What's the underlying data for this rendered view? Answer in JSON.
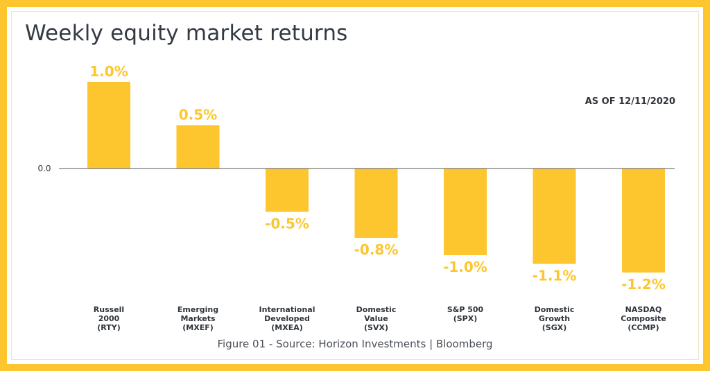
{
  "page": {
    "title": "Weekly equity market returns",
    "as_of": "AS OF 12/11/2020",
    "source": "Figure 01 - Source: Horizon Investments | Bloomberg"
  },
  "colors": {
    "bar": "#FDC62E",
    "text": "#2f343b",
    "baseline": "#555555"
  },
  "chart_data": {
    "type": "bar",
    "title": "Weekly equity market returns",
    "xlabel": "",
    "ylabel": "",
    "grid": false,
    "ylim": [
      -1.2,
      1.0
    ],
    "zero_label": "0.0",
    "categories": [
      [
        "Russell",
        "2000",
        "(RTY)"
      ],
      [
        "Emerging",
        "Markets",
        "(MXEF)"
      ],
      [
        "International",
        "Developed",
        "(MXEA)"
      ],
      [
        "Domestic",
        "Value",
        "(SVX)"
      ],
      [
        "S&P 500",
        "(SPX)"
      ],
      [
        "Domestic",
        "Growth",
        "(SGX)"
      ],
      [
        "NASDAQ",
        "Composite",
        "(CCMP)"
      ]
    ],
    "values": [
      1.0,
      0.5,
      -0.5,
      -0.8,
      -1.0,
      -1.1,
      -1.2
    ],
    "value_labels": [
      "1.0%",
      "0.5%",
      "-0.5%",
      "-0.8%",
      "-1.0%",
      "-1.1%",
      "-1.2%"
    ]
  }
}
